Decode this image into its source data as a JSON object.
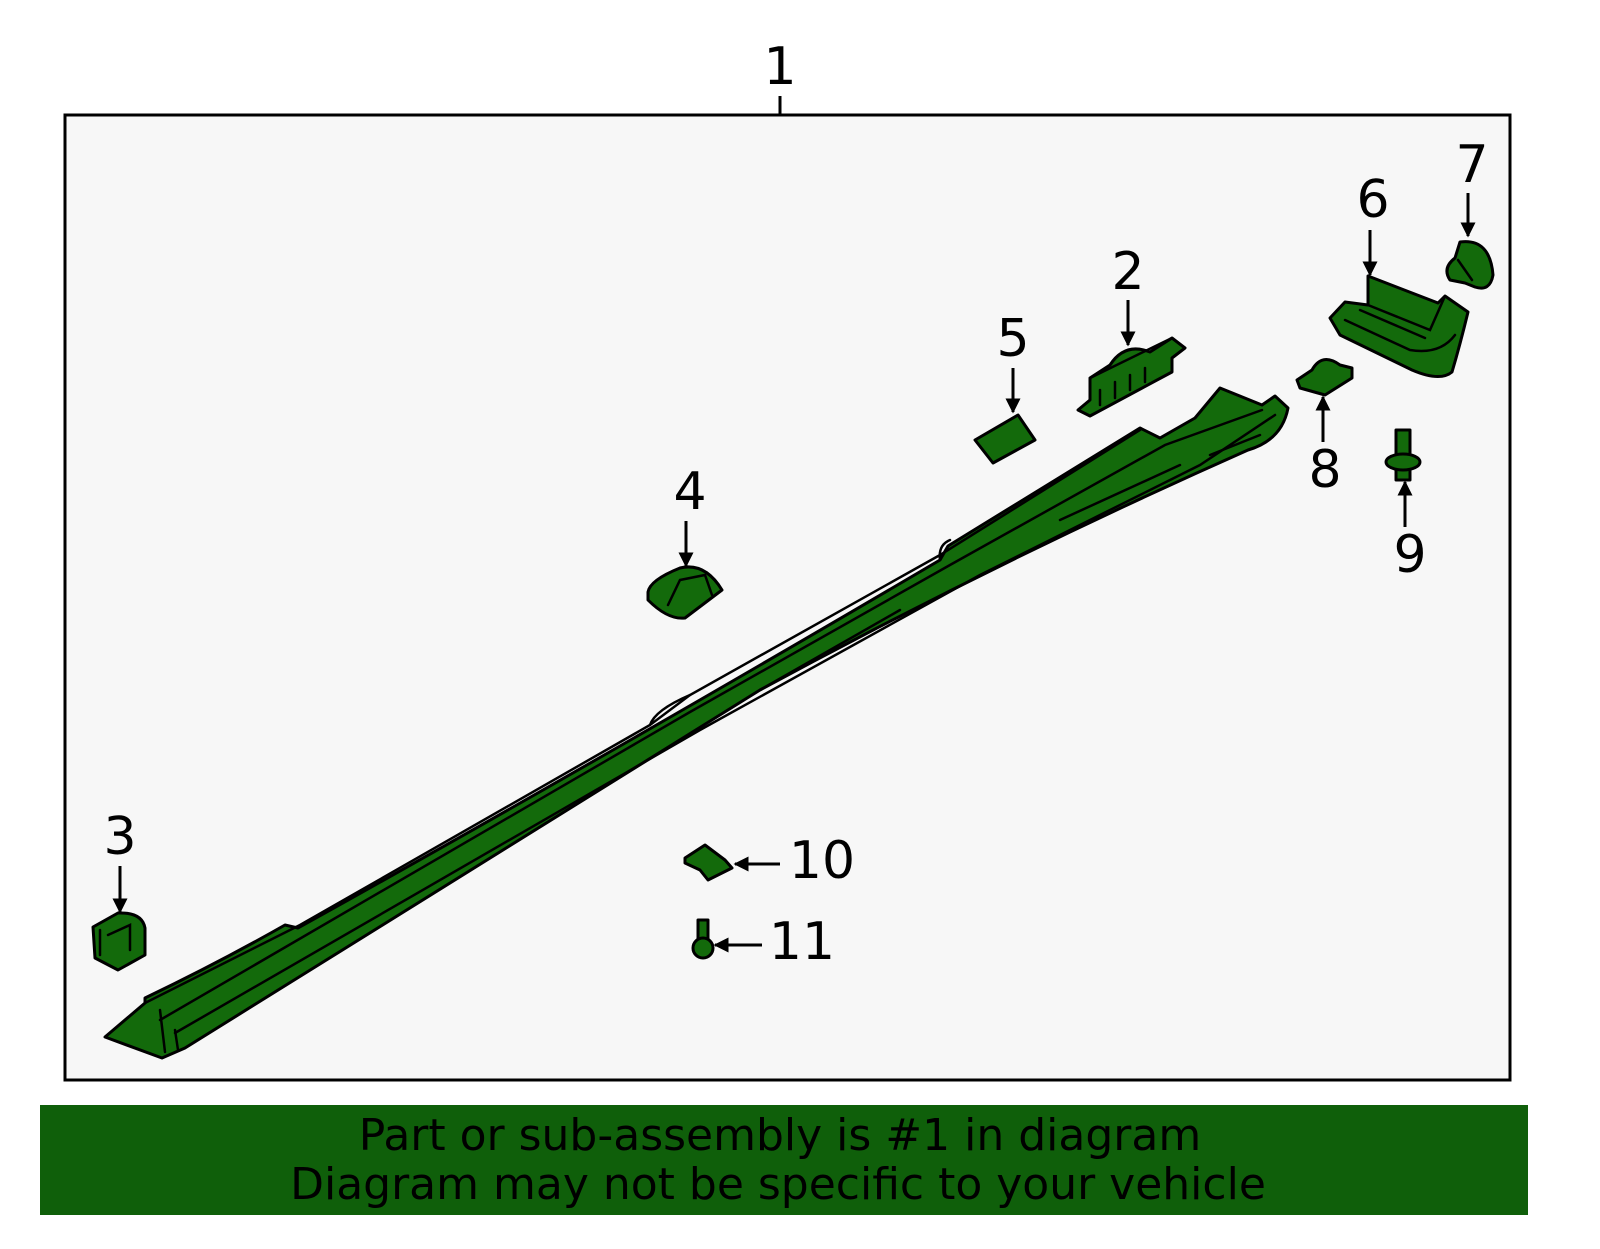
{
  "callouts": [
    {
      "label": "1"
    },
    {
      "label": "2"
    },
    {
      "label": "3"
    },
    {
      "label": "4"
    },
    {
      "label": "5"
    },
    {
      "label": "6"
    },
    {
      "label": "7"
    },
    {
      "label": "8"
    },
    {
      "label": "9"
    },
    {
      "label": "10"
    },
    {
      "label": "11"
    }
  ],
  "footer": {
    "lines": [
      "Part or sub-assembly is #1 in diagram",
      "Diagram may not be specific to your vehicle"
    ]
  }
}
